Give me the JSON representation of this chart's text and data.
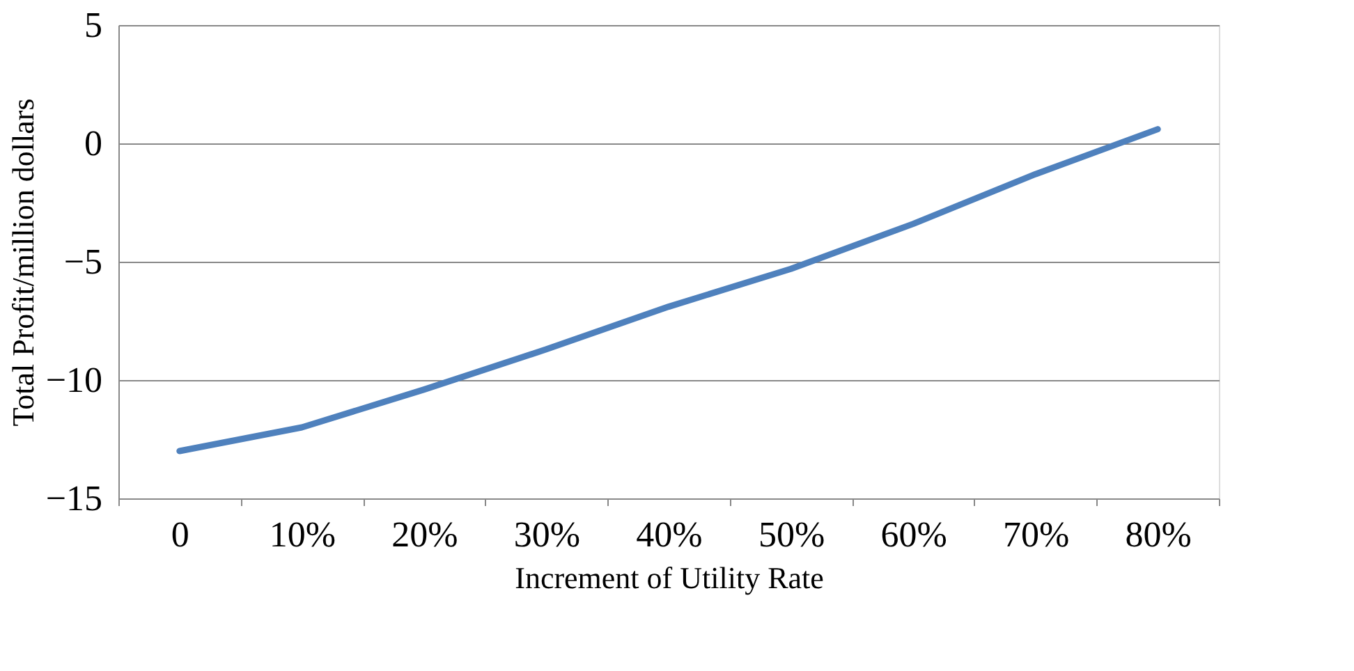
{
  "chart_data": {
    "type": "line",
    "xlabel": "Increment of Utility  Rate",
    "ylabel": "Total Profit/million  dollars",
    "categories": [
      "0",
      "10%",
      "20%",
      "30%",
      "40%",
      "50%",
      "60%",
      "70%",
      "80%"
    ],
    "series": [
      {
        "color": "#4f81bd",
        "values": [
          -13.0,
          -12.0,
          -10.4,
          -8.7,
          -6.9,
          -5.3,
          -3.4,
          -1.3,
          0.6
        ]
      }
    ],
    "ylim": [
      -15,
      5
    ],
    "yticks": [
      -15,
      -10,
      -5,
      0,
      5
    ],
    "grid": "y",
    "marker": "none",
    "line_style": "solid"
  }
}
